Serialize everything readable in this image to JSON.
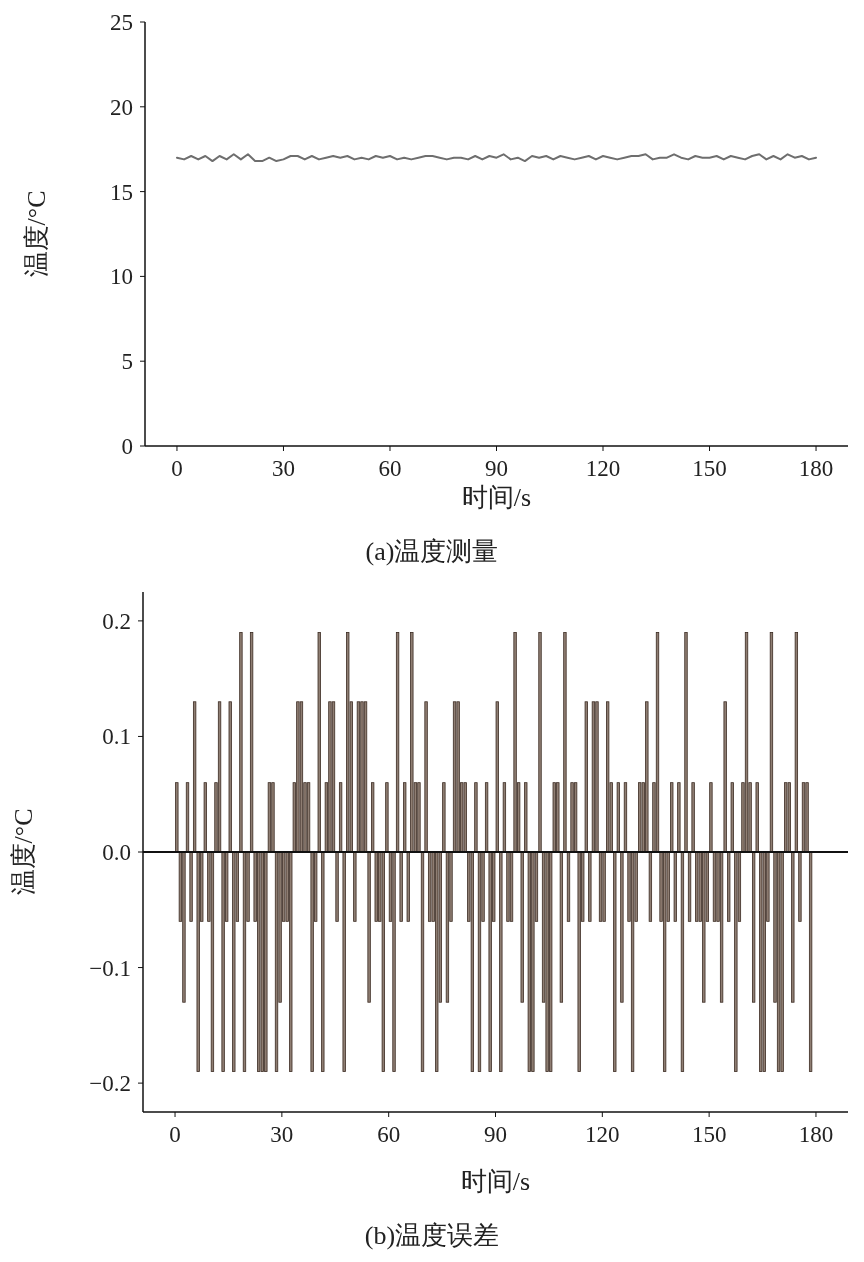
{
  "chart_data": [
    {
      "type": "line",
      "xlabel": "时间/s",
      "ylabel": "温度/°C",
      "annotations": [
        "(a)温度测量"
      ],
      "xlim": [
        -9,
        189
      ],
      "ylim": [
        0,
        25
      ],
      "xticks": [
        0,
        30,
        60,
        90,
        120,
        150,
        180
      ],
      "yticks": [
        0,
        5,
        10,
        15,
        20,
        25
      ],
      "x": [
        0,
        2,
        4,
        6,
        8,
        10,
        12,
        14,
        16,
        18,
        20,
        22,
        24,
        26,
        28,
        30,
        32,
        34,
        36,
        38,
        40,
        42,
        44,
        46,
        48,
        50,
        52,
        54,
        56,
        58,
        60,
        62,
        64,
        66,
        68,
        70,
        72,
        74,
        76,
        78,
        80,
        82,
        84,
        86,
        88,
        90,
        92,
        94,
        96,
        98,
        100,
        102,
        104,
        106,
        108,
        110,
        112,
        114,
        116,
        118,
        120,
        122,
        124,
        126,
        128,
        130,
        132,
        134,
        136,
        138,
        140,
        142,
        144,
        146,
        148,
        150,
        152,
        154,
        156,
        158,
        160,
        162,
        164,
        166,
        168,
        170,
        172,
        174,
        176,
        178,
        180
      ],
      "series": [
        {
          "color": "#6e6e6e",
          "values": [
            17.0,
            16.9,
            17.1,
            16.9,
            17.1,
            16.8,
            17.1,
            16.9,
            17.2,
            16.9,
            17.2,
            16.8,
            16.8,
            17.0,
            16.8,
            16.9,
            17.1,
            17.1,
            16.9,
            17.1,
            16.9,
            17.0,
            17.1,
            17.0,
            17.1,
            16.9,
            17.0,
            16.9,
            17.1,
            17.0,
            17.1,
            16.9,
            17.0,
            16.9,
            17.0,
            17.1,
            17.1,
            17.0,
            16.9,
            17.0,
            17.0,
            16.9,
            17.1,
            16.9,
            17.1,
            17.0,
            17.2,
            16.9,
            17.0,
            16.8,
            17.1,
            17.0,
            17.1,
            16.9,
            17.1,
            17.0,
            16.9,
            17.0,
            17.1,
            16.9,
            17.1,
            17.0,
            16.9,
            17.0,
            17.1,
            17.1,
            17.2,
            16.9,
            17.0,
            17.0,
            17.2,
            17.0,
            16.9,
            17.1,
            17.0,
            17.0,
            17.1,
            16.9,
            17.1,
            17.0,
            16.9,
            17.1,
            17.2,
            16.9,
            17.1,
            16.9,
            17.2,
            17.0,
            17.1,
            16.9,
            17.0
          ]
        }
      ]
    },
    {
      "type": "bar",
      "xlabel": "时间/s",
      "ylabel": "温度/°C",
      "annotations": [
        "(b)温度误差"
      ],
      "xlim": [
        -9,
        189
      ],
      "ylim": [
        -0.225,
        0.225
      ],
      "xticks": [
        0,
        30,
        60,
        90,
        120,
        150,
        180
      ],
      "yticks": [
        {
          "value": -0.2,
          "label": "−0.2"
        },
        {
          "value": -0.1,
          "label": "−0.1"
        },
        {
          "value": 0,
          "label": "0.0"
        },
        {
          "value": 0.1,
          "label": "0.1"
        },
        {
          "value": 0.2,
          "label": "0.2"
        }
      ],
      "ref_lines": [
        {
          "axis": "y",
          "value": 0,
          "color": "#111111"
        }
      ],
      "x": [
        0.5,
        1.5,
        2.5,
        3.5,
        4.5,
        5.5,
        6.5,
        7.5,
        8.5,
        9.5,
        10.5,
        11.5,
        12.5,
        13.5,
        14.5,
        15.5,
        16.5,
        17.5,
        18.5,
        19.5,
        20.5,
        21.5,
        22.5,
        23.5,
        24.5,
        25.5,
        26.5,
        27.5,
        28.5,
        29.5,
        30.5,
        31.5,
        32.5,
        33.5,
        34.5,
        35.5,
        36.5,
        37.5,
        38.5,
        39.5,
        40.5,
        41.5,
        42.5,
        43.5,
        44.5,
        45.5,
        46.5,
        47.5,
        48.5,
        49.5,
        50.5,
        51.5,
        52.5,
        53.5,
        54.5,
        55.5,
        56.5,
        57.5,
        58.5,
        59.5,
        60.5,
        61.5,
        62.5,
        63.5,
        64.5,
        65.5,
        66.5,
        67.5,
        68.5,
        69.5,
        70.5,
        71.5,
        72.5,
        73.5,
        74.5,
        75.5,
        76.5,
        77.5,
        78.5,
        79.5,
        80.5,
        81.5,
        82.5,
        83.5,
        84.5,
        85.5,
        86.5,
        87.5,
        88.5,
        89.5,
        90.5,
        91.5,
        92.5,
        93.5,
        94.5,
        95.5,
        96.5,
        97.5,
        98.5,
        99.5,
        100.5,
        101.5,
        102.5,
        103.5,
        104.5,
        105.5,
        106.5,
        107.5,
        108.5,
        109.5,
        110.5,
        111.5,
        112.5,
        113.5,
        114.5,
        115.5,
        116.5,
        117.5,
        118.5,
        119.5,
        120.5,
        121.5,
        122.5,
        123.5,
        124.5,
        125.5,
        126.5,
        127.5,
        128.5,
        129.5,
        130.5,
        131.5,
        132.5,
        133.5,
        134.5,
        135.5,
        136.5,
        137.5,
        138.5,
        139.5,
        140.5,
        141.5,
        142.5,
        143.5,
        144.5,
        145.5,
        146.5,
        147.5,
        148.5,
        149.5,
        150.5,
        151.5,
        152.5,
        153.5,
        154.5,
        155.5,
        156.5,
        157.5,
        158.5,
        159.5,
        160.5,
        161.5,
        162.5,
        163.5,
        164.5,
        165.5,
        166.5,
        167.5,
        168.5,
        169.5,
        170.5,
        171.5,
        172.5,
        173.5,
        174.5,
        175.5,
        176.5,
        177.5,
        178.5
      ],
      "series": [
        {
          "color": "#8f7e73",
          "values": [
            0.06,
            -0.06,
            -0.13,
            0.06,
            -0.06,
            0.13,
            -0.19,
            -0.06,
            0.06,
            -0.06,
            -0.19,
            0.06,
            0.13,
            -0.19,
            -0.06,
            0.13,
            -0.19,
            -0.06,
            0.19,
            -0.19,
            -0.06,
            0.19,
            -0.06,
            -0.19,
            -0.19,
            -0.19,
            0.06,
            0.06,
            -0.19,
            -0.13,
            -0.06,
            -0.06,
            -0.19,
            0.06,
            0.13,
            0.13,
            0.06,
            0.06,
            -0.19,
            -0.06,
            0.19,
            -0.19,
            0.06,
            0.13,
            0.13,
            -0.06,
            0.06,
            -0.19,
            0.19,
            0.13,
            -0.06,
            0.13,
            0.13,
            0.13,
            -0.13,
            0.06,
            -0.06,
            -0.06,
            -0.19,
            0.06,
            -0.06,
            -0.19,
            0.19,
            -0.06,
            0.06,
            -0.06,
            0.19,
            0.06,
            0.06,
            -0.19,
            0.13,
            -0.06,
            -0.06,
            -0.19,
            -0.13,
            0.06,
            -0.13,
            -0.06,
            0.13,
            0.13,
            0.06,
            0.06,
            -0.06,
            -0.19,
            0.06,
            -0.19,
            -0.06,
            0.06,
            -0.19,
            -0.06,
            0.13,
            -0.19,
            0.06,
            -0.06,
            -0.06,
            0.19,
            0.06,
            -0.13,
            0.06,
            -0.19,
            -0.19,
            -0.06,
            0.19,
            -0.13,
            -0.19,
            -0.19,
            0.06,
            0.06,
            -0.13,
            0.19,
            -0.06,
            0.06,
            0.06,
            -0.19,
            -0.06,
            0.13,
            -0.06,
            0.13,
            0.13,
            -0.06,
            -0.06,
            0.13,
            0.06,
            -0.19,
            0.06,
            -0.13,
            0.06,
            -0.06,
            -0.19,
            -0.06,
            0.06,
            0.06,
            0.13,
            -0.06,
            0.06,
            0.19,
            -0.06,
            -0.19,
            -0.06,
            0.06,
            -0.06,
            0.06,
            -0.19,
            0.19,
            -0.06,
            0.06,
            -0.06,
            -0.06,
            -0.13,
            -0.06,
            0.06,
            -0.06,
            -0.06,
            -0.13,
            0.13,
            -0.06,
            0.06,
            -0.19,
            -0.06,
            0.06,
            0.19,
            0.06,
            -0.13,
            0.06,
            -0.19,
            -0.19,
            -0.06,
            0.19,
            -0.13,
            -0.19,
            -0.19,
            0.06,
            0.06,
            -0.13,
            0.19,
            -0.06,
            0.06,
            0.06,
            -0.19
          ]
        }
      ]
    }
  ]
}
